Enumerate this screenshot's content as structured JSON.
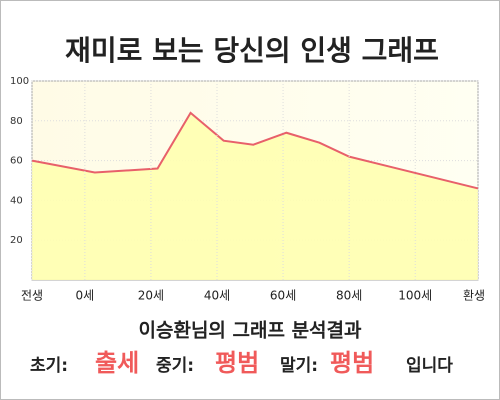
{
  "chart_data": {
    "type": "area",
    "title": "재미로 보는 당신의 인생 그래프",
    "x": [
      -16,
      3,
      22,
      32,
      42,
      51,
      61,
      71,
      80,
      119
    ],
    "values": [
      60,
      54,
      56,
      84,
      70,
      68,
      74,
      69,
      62,
      46
    ],
    "line_color": "#e8606a",
    "fill_color": "#ffffb0",
    "xlim": [
      -16,
      119
    ],
    "xticks": [
      {
        "value": -16,
        "label": "전생"
      },
      {
        "value": 0,
        "label": "0세"
      },
      {
        "value": 20,
        "label": "20세"
      },
      {
        "value": 40,
        "label": "40세"
      },
      {
        "value": 60,
        "label": "60세"
      },
      {
        "value": 80,
        "label": "80세"
      },
      {
        "value": 100,
        "label": "100세"
      },
      {
        "value": 119,
        "label": "환생"
      }
    ],
    "ylim": [
      0,
      100
    ],
    "yticks": [
      20,
      40,
      60,
      80,
      100
    ],
    "grid": true
  },
  "analysis": {
    "heading": "이승환님의 그래프 분석결과",
    "early_label": "초기:",
    "early_value": "출세",
    "middle_label": "중기:",
    "middle_value": "평범",
    "late_label": "말기:",
    "late_value": "평범",
    "ending": "입니다"
  }
}
